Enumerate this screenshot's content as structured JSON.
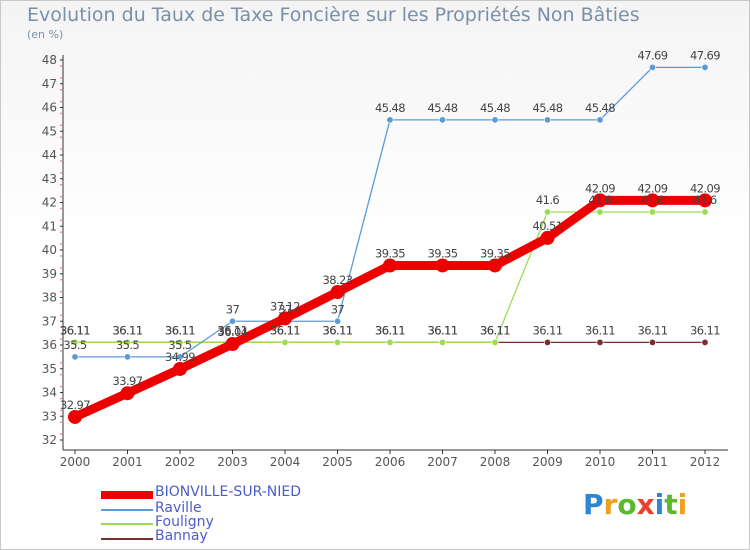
{
  "title": "Evolution du Taux de Taxe Foncière sur les Propriétés Non Bâties",
  "unit_label": "(en %)",
  "logo": {
    "text": "Proxiti",
    "letters": [
      "P",
      "r",
      "o",
      "x",
      "i",
      "t",
      "i"
    ],
    "colors": [
      "#2e86d1",
      "#f0a020",
      "#5cb82e",
      "#e8402a",
      "#2e86d1",
      "#5cb82e",
      "#f0a020"
    ]
  },
  "chart_data": {
    "type": "line",
    "title": "Evolution du Taux de Taxe Foncière sur les Propriétés Non Bâties",
    "ylabel": "(en %)",
    "xlabel": "",
    "categories": [
      "2000",
      "2001",
      "2002",
      "2003",
      "2004",
      "2005",
      "2006",
      "2007",
      "2008",
      "2009",
      "2010",
      "2011",
      "2012"
    ],
    "ylim": [
      32,
      48
    ],
    "yticks": [
      32,
      33,
      34,
      35,
      36,
      37,
      38,
      39,
      40,
      41,
      42,
      43,
      44,
      45,
      46,
      47,
      48
    ],
    "grid": false,
    "legend_position": "bottom-left",
    "series": [
      {
        "name": "BIONVILLE-SUR-NIED",
        "color": "#ee0000",
        "emphasis": true,
        "values": [
          32.97,
          33.97,
          34.99,
          36.04,
          37.12,
          38.23,
          39.35,
          39.35,
          39.35,
          40.51,
          42.09,
          42.09,
          42.09
        ],
        "labels": [
          "32.97",
          "33.97",
          "34.99",
          "36.04",
          "37.12",
          "38.23",
          "39.35",
          "39.35",
          "39.35",
          "40.51",
          "42.09",
          "42.09",
          "42.09"
        ]
      },
      {
        "name": "Raville",
        "color": "#5b9bd5",
        "values": [
          35.5,
          35.5,
          35.5,
          37,
          37,
          37,
          45.48,
          45.48,
          45.48,
          45.48,
          45.48,
          47.69,
          47.69
        ],
        "labels": [
          "35.5",
          "35.5",
          "35.5",
          "37",
          "37",
          "37",
          "45.48",
          "45.48",
          "45.48",
          "45.48",
          "45.48",
          "47.69",
          "47.69"
        ]
      },
      {
        "name": "Fouligny",
        "color": "#99dd55",
        "values": [
          36.11,
          36.11,
          36.11,
          36.11,
          36.11,
          36.11,
          36.11,
          36.11,
          36.11,
          41.6,
          41.6,
          41.6,
          41.6
        ],
        "labels": [
          "36.11",
          "36.11",
          "36.11",
          "36.11",
          "36.11",
          "36.11",
          "36.11",
          "36.11",
          "36.11",
          "41.6",
          "41.6",
          "41.6",
          "41.6"
        ]
      },
      {
        "name": "Bannay",
        "color": "#7a2e2e",
        "values": [
          36.11,
          36.11,
          36.11,
          36.11,
          36.11,
          36.11,
          36.11,
          36.11,
          36.11,
          36.11,
          36.11,
          36.11,
          36.11
        ],
        "labels": [
          "36.11",
          "36.11",
          "36.11",
          "36.11",
          "36.11",
          "36.11",
          "36.11",
          "36.11",
          "36.11",
          "36.11",
          "36.11",
          "36.11",
          "36.11"
        ]
      }
    ]
  }
}
